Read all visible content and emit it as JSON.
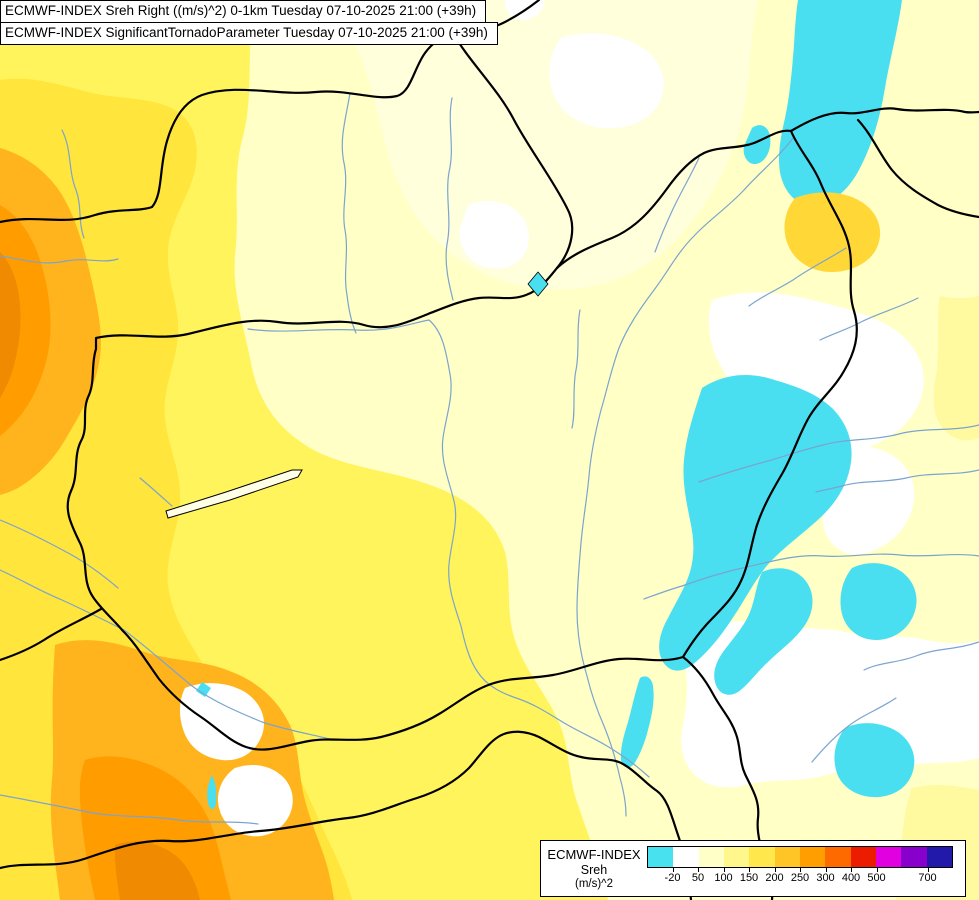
{
  "header": {
    "line1": "ECMWF-INDEX Sreh Right ((m/s)^2) 0-1km Tuesday 07-10-2025 21:00 (+39h)",
    "line2": "ECMWF-INDEX SignificantTornadoParameter Tuesday 07-10-2025 21:00 (+39h)"
  },
  "legend": {
    "title": "ECMWF-INDEX",
    "parameter": "Sreh",
    "units": "(m/s)^2",
    "colorbar": {
      "segments": [
        "#48E1F0",
        "#FFFFFF",
        "#FFFFC8",
        "#FFF78C",
        "#FFE74C",
        "#FFC526",
        "#FF9E00",
        "#FF6A00",
        "#EC1C00",
        "#E000E0",
        "#8800CC",
        "#2218AA"
      ],
      "ticks": [
        {
          "label": "-20",
          "boundary": 1
        },
        {
          "label": "50",
          "boundary": 2
        },
        {
          "label": "100",
          "boundary": 3
        },
        {
          "label": "150",
          "boundary": 4
        },
        {
          "label": "200",
          "boundary": 5
        },
        {
          "label": "250",
          "boundary": 6
        },
        {
          "label": "300",
          "boundary": 7
        },
        {
          "label": "400",
          "boundary": 8
        },
        {
          "label": "500",
          "boundary": 9
        },
        {
          "label": "700",
          "boundary": 11
        }
      ]
    }
  },
  "map": {
    "palette": {
      "base": "#FFFFC6",
      "pale_band": "#FFFFDC",
      "yellow": "#FFF45C",
      "gold": "#FFE53C",
      "gold_patch": "#FFD838",
      "orange": "#FFB41E",
      "deep_orange": "#FF9C00",
      "dark_orange": "#F08A00",
      "white": "#FFFFFF",
      "cyan": "#4ADFF0",
      "pale_edge": "#FFF9A0",
      "border": "#000000",
      "river": "#7AA4CF",
      "lake_fill": "#FFFFE8"
    }
  }
}
